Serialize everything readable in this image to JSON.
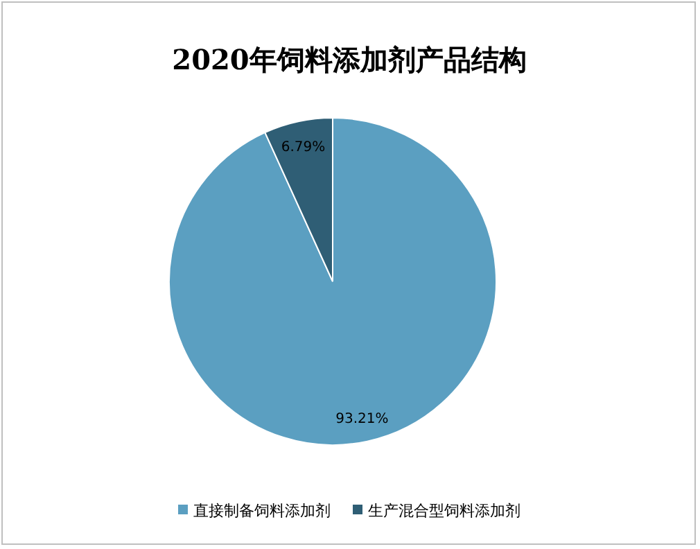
{
  "chart_data": {
    "type": "pie",
    "title": "2020年饲料添加剂产品结构",
    "categories": [
      "直接制备饲料添加剂",
      "生产混合型饲料添加剂"
    ],
    "values": [
      93.21,
      6.79
    ],
    "colors": [
      "#5b9fc1",
      "#2f5e75"
    ],
    "value_labels": [
      "93.21%",
      "6.79%"
    ],
    "legend": "bottom"
  }
}
